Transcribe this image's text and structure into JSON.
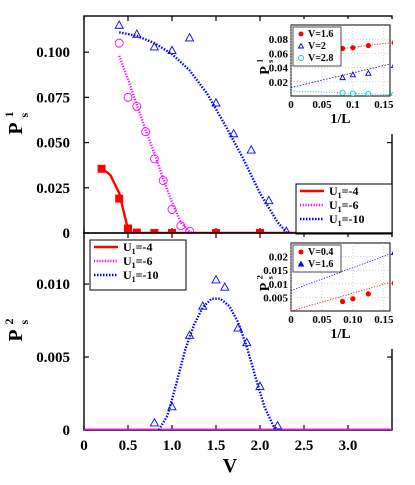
{
  "chart_data": [
    {
      "type": "line",
      "panel": "top",
      "ylabel_main": "P",
      "ylabel_sup": "1",
      "ylabel_sub": "s",
      "xlim": [
        0,
        3.5
      ],
      "ylim": [
        0,
        0.12
      ],
      "yticks": [
        "0",
        "0.025",
        "0.050",
        "0.075",
        "0.100"
      ],
      "ytick_values": [
        0,
        0.025,
        0.05,
        0.075,
        0.1
      ],
      "legend": "bottom-right",
      "series": [
        {
          "name": "U",
          "sub": "1",
          "value_label": "=-4",
          "color": "#ff0000",
          "marker": "square-filled",
          "points": [
            [
              0.2,
              0.0355
            ],
            [
              0.4,
              0.019
            ],
            [
              0.5,
              0.0025
            ],
            [
              0.6,
              0.0002
            ],
            [
              0.8,
              0
            ],
            [
              1.0,
              0
            ],
            [
              1.5,
              0
            ],
            [
              2.0,
              0
            ],
            [
              2.5,
              0
            ],
            [
              3.0,
              0
            ],
            [
              3.5,
              0
            ]
          ],
          "fit": [
            [
              0.2,
              0.036
            ],
            [
              0.3,
              0.032
            ],
            [
              0.4,
              0.022
            ],
            [
              0.45,
              0.012
            ],
            [
              0.5,
              0.002
            ],
            [
              0.55,
              0
            ],
            [
              3.5,
              0
            ]
          ]
        },
        {
          "name": "U",
          "sub": "1",
          "value_label": "=-6",
          "color": "#ff00ff",
          "marker": "circle-open",
          "points": [
            [
              0.4,
              0.105
            ],
            [
              0.5,
              0.075
            ],
            [
              0.6,
              0.07
            ],
            [
              0.7,
              0.056
            ],
            [
              0.8,
              0.041
            ],
            [
              0.9,
              0.029
            ],
            [
              1.0,
              0.013
            ],
            [
              1.1,
              0.004
            ],
            [
              1.2,
              0.001
            ]
          ],
          "fit": [
            [
              0.4,
              0.098
            ],
            [
              0.5,
              0.085
            ],
            [
              0.6,
              0.071
            ],
            [
              0.7,
              0.057
            ],
            [
              0.8,
              0.044
            ],
            [
              0.9,
              0.03
            ],
            [
              1.0,
              0.017
            ],
            [
              1.1,
              0.006
            ],
            [
              1.2,
              0.0005
            ],
            [
              1.25,
              0
            ]
          ]
        },
        {
          "name": "U",
          "sub": "1",
          "value_label": "=-10",
          "color": "#0000ff",
          "marker": "triangle-open",
          "points": [
            [
              0.4,
              0.115
            ],
            [
              0.6,
              0.11
            ],
            [
              0.8,
              0.103
            ],
            [
              1.0,
              0.101
            ],
            [
              1.2,
              0.108
            ],
            [
              1.5,
              0.072
            ],
            [
              1.7,
              0.055
            ],
            [
              1.9,
              0.046
            ],
            [
              2.1,
              0.018
            ],
            [
              2.3,
              0.001
            ]
          ],
          "fit": [
            [
              0.4,
              0.111
            ],
            [
              0.6,
              0.109
            ],
            [
              0.8,
              0.105
            ],
            [
              1.0,
              0.099
            ],
            [
              1.2,
              0.09
            ],
            [
              1.4,
              0.077
            ],
            [
              1.6,
              0.06
            ],
            [
              1.8,
              0.042
            ],
            [
              2.0,
              0.022
            ],
            [
              2.2,
              0.006
            ],
            [
              2.3,
              0.0005
            ],
            [
              2.35,
              0
            ]
          ]
        }
      ],
      "inset": {
        "xlabel": "1/L",
        "ylabel_main": "P",
        "ylabel_sup": "1",
        "ylabel_sub": "s",
        "xlim": [
          0,
          0.16
        ],
        "ylim": [
          0,
          0.1
        ],
        "xticks": [
          "0",
          "0.05",
          "0.1",
          "0.15"
        ],
        "xtick_values": [
          0,
          0.05,
          0.1,
          0.15
        ],
        "yticks": [
          "0.08",
          "0.06",
          "0.04",
          "0.02"
        ],
        "ytick_values": [
          0.08,
          0.06,
          0.04,
          0.02
        ],
        "legend": "top-left",
        "series": [
          {
            "name": "V=1.6",
            "color": "#ff0000",
            "marker": "circle-filled",
            "points": [
              [
                0.0833,
                0.067
              ],
              [
                0.1,
                0.068
              ],
              [
                0.125,
                0.071
              ],
              [
                0.1667,
                0.075
              ]
            ],
            "fit": [
              [
                0,
                0.058
              ],
              [
                0.16,
                0.075
              ]
            ]
          },
          {
            "name": "V=2",
            "color": "#0000ff",
            "marker": "triangle-open",
            "points": [
              [
                0.0833,
                0.026
              ],
              [
                0.1,
                0.03
              ],
              [
                0.125,
                0.032
              ],
              [
                0.1667,
                0.043
              ]
            ],
            "fit": [
              [
                0,
                0.012
              ],
              [
                0.16,
                0.045
              ]
            ]
          },
          {
            "name": "V=2.8",
            "color": "#00cccc",
            "marker": "circle-open",
            "points": [
              [
                0.0833,
                0.0045
              ],
              [
                0.1,
                0.0035
              ],
              [
                0.125,
                0.003
              ],
              [
                0.1667,
                0.002
              ]
            ],
            "fit": [
              [
                0,
                0.007
              ],
              [
                0.16,
                0.002
              ]
            ]
          }
        ]
      }
    },
    {
      "type": "line",
      "panel": "bottom",
      "xlabel": "V",
      "ylabel_main": "P",
      "ylabel_sup": "2",
      "ylabel_sub": "s",
      "xlim": [
        0,
        3.5
      ],
      "ylim": [
        0,
        0.0135
      ],
      "xticks": [
        "0",
        "0.5",
        "1.0",
        "1.5",
        "2.0",
        "2.5",
        "3.0"
      ],
      "xtick_values": [
        0,
        0.5,
        1.0,
        1.5,
        2.0,
        2.5,
        3.0
      ],
      "yticks": [
        "0",
        "0.005",
        "0.010"
      ],
      "ytick_values": [
        0,
        0.005,
        0.01
      ],
      "legend": "top-left",
      "series": [
        {
          "name": "U",
          "sub": "1",
          "value_label": "=-4",
          "color": "#ff0000",
          "marker": "none",
          "points": [],
          "fit": [
            [
              0,
              0
            ],
            [
              3.5,
              0
            ]
          ]
        },
        {
          "name": "U",
          "sub": "1",
          "value_label": "=-6",
          "color": "#ff00ff",
          "marker": "none",
          "points": [],
          "fit": [
            [
              0,
              0
            ],
            [
              3.5,
              0
            ]
          ]
        },
        {
          "name": "U",
          "sub": "1",
          "value_label": "=-10",
          "color": "#0000ff",
          "marker": "triangle-open",
          "points": [
            [
              0.8,
              0.0005
            ],
            [
              1.0,
              0.0016
            ],
            [
              1.2,
              0.0065
            ],
            [
              1.35,
              0.0085
            ],
            [
              1.5,
              0.0103
            ],
            [
              1.6,
              0.0098
            ],
            [
              1.75,
              0.007
            ],
            [
              1.85,
              0.006
            ],
            [
              2.0,
              0.003
            ],
            [
              2.2,
              0.0003
            ]
          ],
          "fit": [
            [
              0.85,
              0
            ],
            [
              0.95,
              0.001
            ],
            [
              1.05,
              0.0032
            ],
            [
              1.15,
              0.0055
            ],
            [
              1.25,
              0.0072
            ],
            [
              1.35,
              0.0084
            ],
            [
              1.45,
              0.009
            ],
            [
              1.55,
              0.009
            ],
            [
              1.65,
              0.0085
            ],
            [
              1.75,
              0.0074
            ],
            [
              1.85,
              0.0057
            ],
            [
              1.95,
              0.0036
            ],
            [
              2.05,
              0.0016
            ],
            [
              2.15,
              0.0003
            ],
            [
              2.2,
              0
            ]
          ]
        }
      ],
      "inset": {
        "xlabel": "1/L",
        "ylabel_main": "P",
        "ylabel_sup": "2",
        "ylabel_sub": "s",
        "xlim": [
          0,
          0.16
        ],
        "ylim": [
          0,
          0.025
        ],
        "xticks": [
          "0",
          "0.05",
          "0.10",
          "0.15"
        ],
        "xtick_values": [
          0,
          0.05,
          0.1,
          0.15
        ],
        "yticks": [
          "0.02",
          "0.015",
          "0.01",
          "0.005"
        ],
        "ytick_values": [
          0.02,
          0.015,
          0.01,
          0.005
        ],
        "legend": "top-left",
        "series": [
          {
            "name": "V=0.4",
            "color": "#ff0000",
            "marker": "circle-filled",
            "points": [
              [
                0.0833,
                0.0035
              ],
              [
                0.1,
                0.0045
              ],
              [
                0.125,
                0.0063
              ],
              [
                0.1667,
                0.0102
              ]
            ],
            "fit": [
              [
                0,
                0
              ],
              [
                0.16,
                0.0105
              ]
            ]
          },
          {
            "name": "V=1.6",
            "color": "#0000ff",
            "marker": "triangle-filled",
            "points": [
              [
                0.1667,
                0.0215
              ]
            ],
            "fit": [
              [
                0,
                0.0075
              ],
              [
                0.16,
                0.021
              ]
            ]
          }
        ]
      }
    }
  ]
}
